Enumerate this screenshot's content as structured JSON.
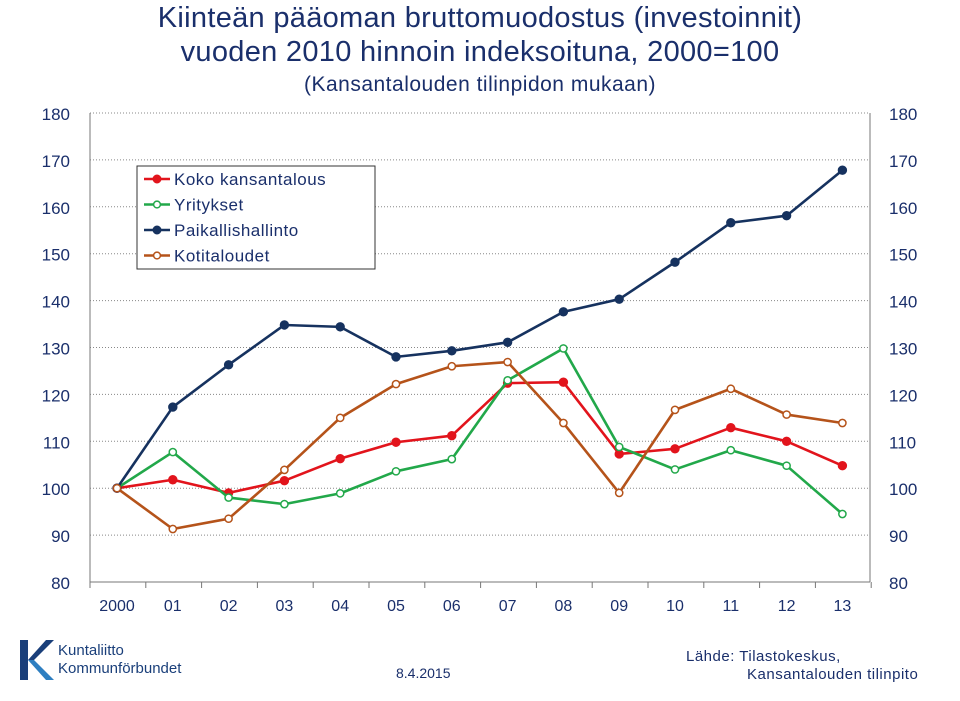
{
  "header": {
    "title_line1": "Kiinteän pääoman bruttomuodostus (investoinnit)",
    "title_line2": "vuoden 2010 hinnoin indeksoituna, 2000=100",
    "subtitle": "(Kansantalouden tilinpidon mukaan)"
  },
  "footer": {
    "logo_line1": "Kuntaliitto",
    "logo_line2": "Kommunförbundet",
    "date": "8.4.2015",
    "source_line1": "Lähde: Tilastokeskus,",
    "source_line2": "Kansantalouden tilinpito"
  },
  "colors": {
    "text": "#1a2f6b",
    "grid": "#888888",
    "koko": "#e2141c",
    "yritykset": "#22a84a",
    "paikallis": "#16325f",
    "koti": "#b5531a"
  },
  "chart_data": {
    "type": "line",
    "title": "Kiinteän pääoman bruttomuodostus (investoinnit) vuoden 2010 hinnoin indeksoituna, 2000=100",
    "subtitle": "(Kansantalouden tilinpidon mukaan)",
    "categories": [
      "2000",
      "01",
      "02",
      "03",
      "04",
      "05",
      "06",
      "07",
      "08",
      "09",
      "10",
      "11",
      "12",
      "13"
    ],
    "ylim": [
      80,
      180
    ],
    "yticks": [
      80,
      90,
      100,
      110,
      120,
      130,
      140,
      150,
      160,
      170,
      180
    ],
    "grid": "horizontal dotted",
    "legend_position": "top-left",
    "series": [
      {
        "name": "Koko kansantalous",
        "color": "#e2141c",
        "marker": "filled",
        "values": [
          100,
          101.8,
          99,
          101.6,
          106.3,
          109.8,
          111.2,
          122.4,
          122.6,
          107.3,
          108.4,
          112.9,
          110,
          104.8
        ]
      },
      {
        "name": "Yritykset",
        "color": "#22a84a",
        "marker": "hollow",
        "values": [
          100,
          107.7,
          98,
          96.6,
          98.9,
          103.6,
          106.2,
          123,
          129.8,
          108.8,
          104,
          108.1,
          104.8,
          94.5
        ]
      },
      {
        "name": "Paikallishallinto",
        "color": "#16325f",
        "marker": "filled",
        "values": [
          100,
          117.3,
          126.3,
          134.8,
          134.4,
          128,
          129.3,
          131.1,
          137.6,
          140.3,
          148.2,
          156.6,
          158.1,
          167.8
        ]
      },
      {
        "name": "Kotitaloudet",
        "color": "#b5531a",
        "marker": "hollow",
        "values": [
          100,
          91.3,
          93.5,
          103.9,
          115,
          122.2,
          126,
          126.9,
          113.9,
          99,
          116.7,
          121.2,
          115.7,
          113.9
        ]
      }
    ]
  }
}
